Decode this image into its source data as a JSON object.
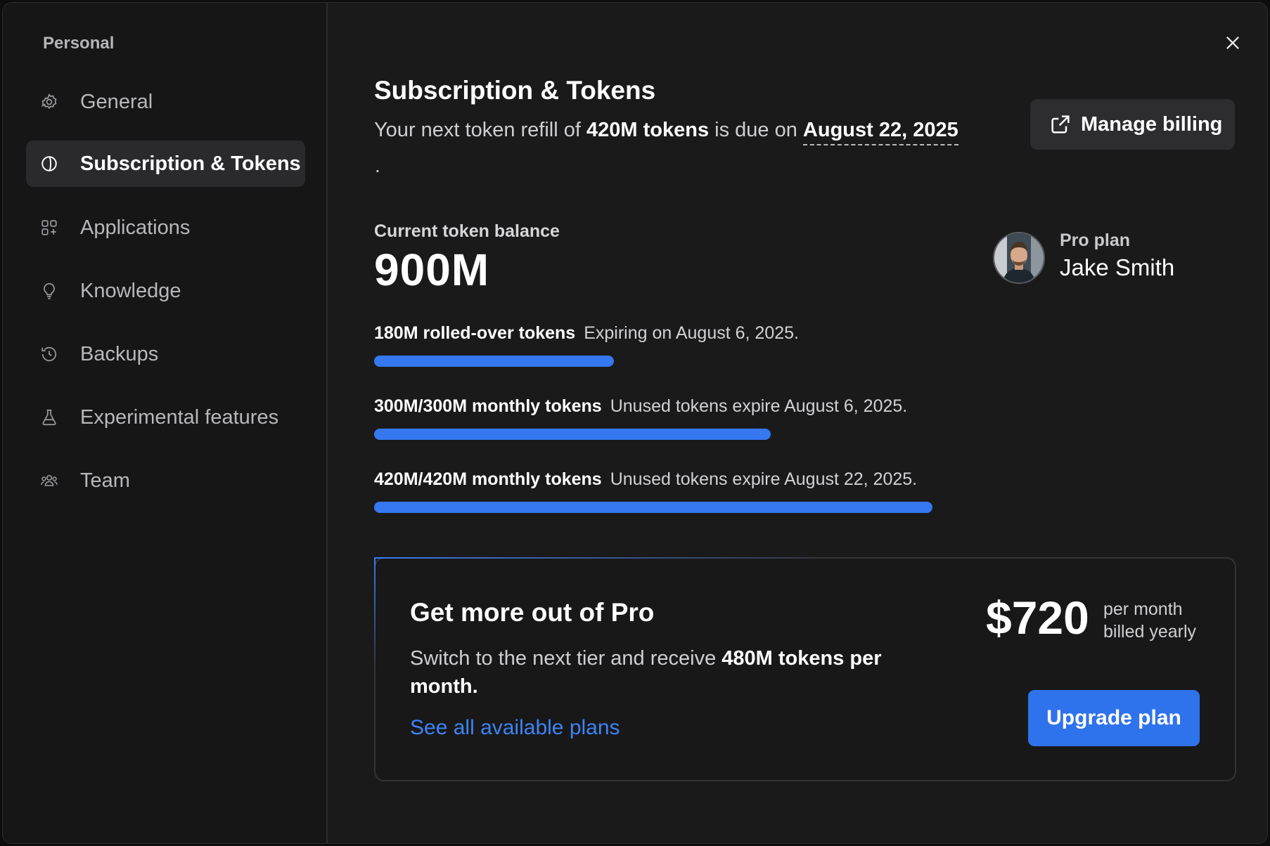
{
  "sidebar": {
    "section_label": "Personal",
    "items": [
      {
        "label": "General",
        "icon": "gear-icon"
      },
      {
        "label": "Subscription & Tokens",
        "icon": "token-coin-icon",
        "active": true
      },
      {
        "label": "Applications",
        "icon": "apps-grid-icon"
      },
      {
        "label": "Knowledge",
        "icon": "lightbulb-icon"
      },
      {
        "label": "Backups",
        "icon": "history-icon"
      },
      {
        "label": "Experimental features",
        "icon": "flask-icon"
      },
      {
        "label": "Team",
        "icon": "team-icon"
      }
    ]
  },
  "header": {
    "title": "Subscription & Tokens",
    "refill_prefix": "Your next token refill of",
    "refill_amount": "420M tokens",
    "refill_middle": "is due on",
    "refill_date": "August 22, 2025",
    "refill_suffix": ".",
    "manage_billing_label": "Manage billing"
  },
  "balance": {
    "label": "Current token balance",
    "value": "900M"
  },
  "account": {
    "plan": "Pro plan",
    "name": "Jake Smith"
  },
  "tokens": [
    {
      "amount": "180M rolled-over tokens",
      "note": "Expiring on August 6, 2025.",
      "fill": 0.43
    },
    {
      "amount": "300M/300M monthly tokens",
      "note": "Unused tokens expire August 6, 2025.",
      "fill": 0.71
    },
    {
      "amount": "420M/420M monthly tokens",
      "note": "Unused tokens expire August 22, 2025.",
      "fill": 1.0
    }
  ],
  "upsell": {
    "title": "Get more out of Pro",
    "desc_prefix": "Switch to the next tier and receive",
    "desc_amount": "480M tokens per month.",
    "link": "See all available plans",
    "price": "$720",
    "price_line1": "per month",
    "price_line2": "billed yearly",
    "button": "Upgrade plan"
  },
  "colors": {
    "accent": "#3578f0",
    "background": "#1a1a1b",
    "sidebar": "#161617"
  }
}
